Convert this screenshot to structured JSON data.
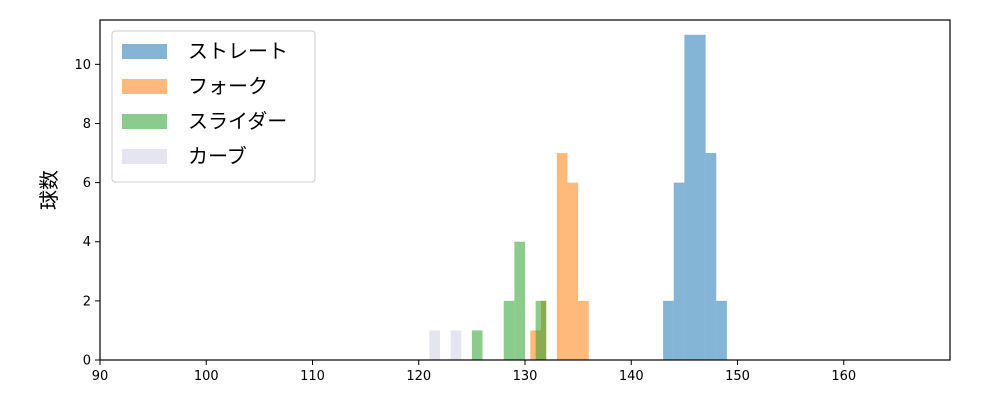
{
  "chart_data": {
    "type": "histogram",
    "ylabel": "球数",
    "xlabel": "",
    "title": "",
    "xlim": [
      90,
      170
    ],
    "ylim": [
      0,
      11.5
    ],
    "xticks": [
      90,
      100,
      110,
      120,
      130,
      140,
      150,
      160
    ],
    "yticks": [
      0,
      2,
      4,
      6,
      8,
      10
    ],
    "grid": false,
    "legend_position": "top-left",
    "series": [
      {
        "name": "ストレート",
        "color": "#1f77b4",
        "bins": [
          {
            "x0": 143.0,
            "x1": 144.0,
            "count": 2
          },
          {
            "x0": 144.0,
            "x1": 145.0,
            "count": 6
          },
          {
            "x0": 145.0,
            "x1": 146.0,
            "count": 11
          },
          {
            "x0": 146.0,
            "x1": 147.0,
            "count": 11
          },
          {
            "x0": 147.0,
            "x1": 148.0,
            "count": 7
          },
          {
            "x0": 148.0,
            "x1": 149.0,
            "count": 2
          }
        ]
      },
      {
        "name": "フォーク",
        "color": "#ff7f0e",
        "bins": [
          {
            "x0": 130.5,
            "x1": 131.5,
            "count": 1
          },
          {
            "x0": 131.5,
            "x1": 132.0,
            "count": 2
          },
          {
            "x0": 133.0,
            "x1": 134.0,
            "count": 7
          },
          {
            "x0": 134.0,
            "x1": 135.0,
            "count": 6
          },
          {
            "x0": 135.0,
            "x1": 136.0,
            "count": 2
          }
        ]
      },
      {
        "name": "スライダー",
        "color": "#2ca02c",
        "bins": [
          {
            "x0": 125.0,
            "x1": 126.0,
            "count": 1
          },
          {
            "x0": 128.0,
            "x1": 129.0,
            "count": 2
          },
          {
            "x0": 129.0,
            "x1": 130.0,
            "count": 4
          },
          {
            "x0": 131.0,
            "x1": 132.0,
            "count": 2
          }
        ]
      },
      {
        "name": "カーブ",
        "color": "#d0d0e8",
        "bins": [
          {
            "x0": 121.0,
            "x1": 122.0,
            "count": 1
          },
          {
            "x0": 123.0,
            "x1": 124.0,
            "count": 1
          }
        ]
      }
    ]
  }
}
